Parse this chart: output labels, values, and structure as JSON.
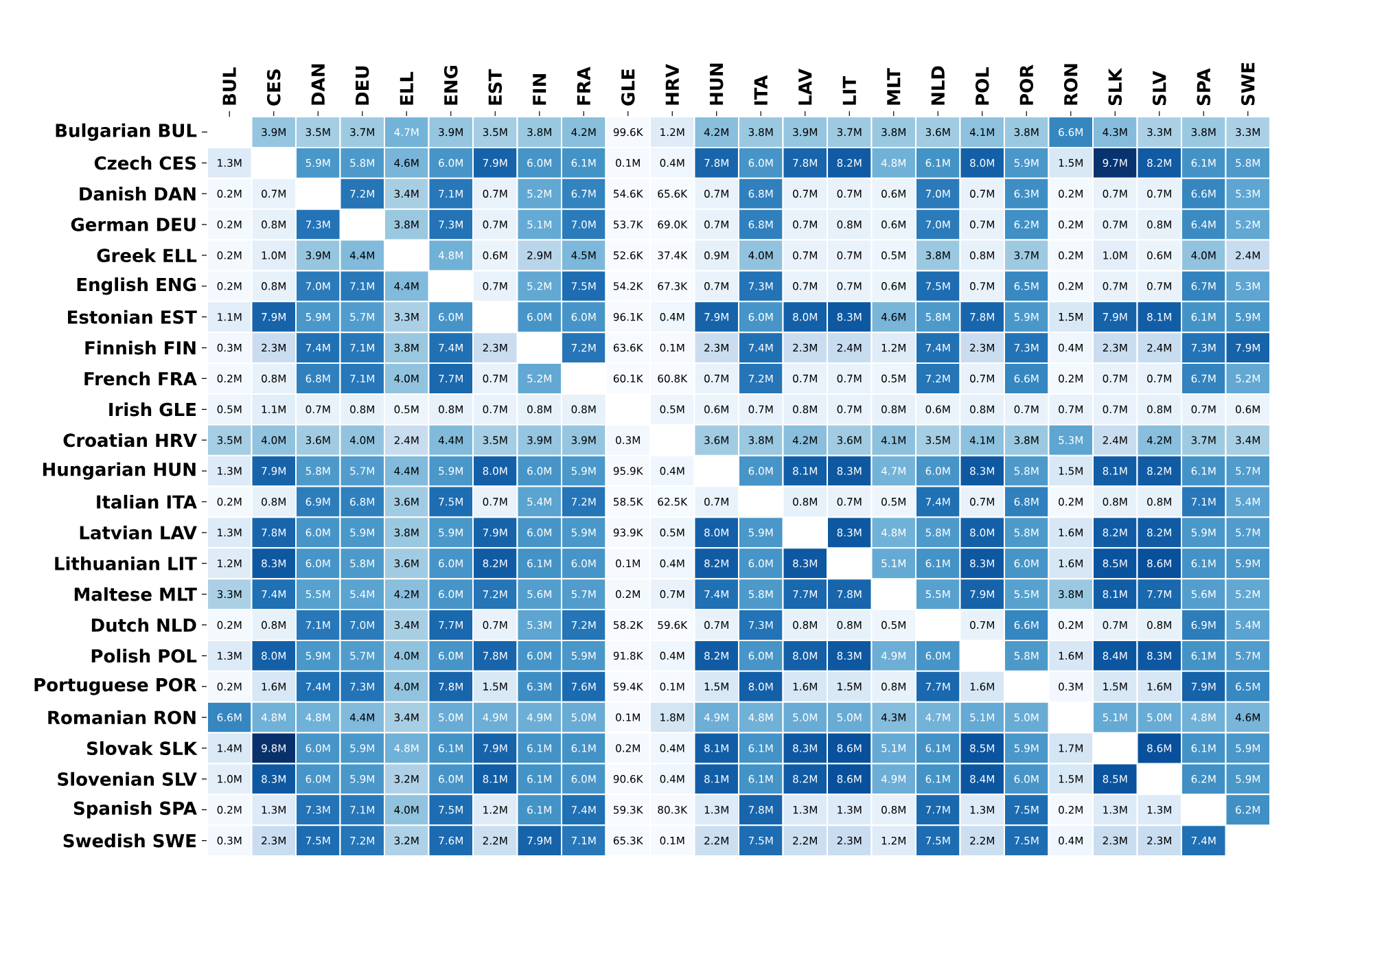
{
  "chart_data": {
    "type": "heatmap",
    "categories": [
      "BUL",
      "CES",
      "DAN",
      "DEU",
      "ELL",
      "ENG",
      "EST",
      "FIN",
      "FRA",
      "GLE",
      "HRV",
      "HUN",
      "ITA",
      "LAV",
      "LIT",
      "MLT",
      "NLD",
      "POL",
      "POR",
      "RON",
      "SLK",
      "SLV",
      "SPA",
      "SWE"
    ],
    "y_categories": [
      "Bulgarian BUL",
      "Czech CES",
      "Danish DAN",
      "German DEU",
      "Greek ELL",
      "English ENG",
      "Estonian EST",
      "Finnish FIN",
      "French FRA",
      "Irish GLE",
      "Croatian HRV",
      "Hungarian HUN",
      "Italian ITA",
      "Latvian LAV",
      "Lithuanian LIT",
      "Maltese MLT",
      "Dutch NLD",
      "Polish POL",
      "Portuguese POR",
      "Romanian RON",
      "Slovak SLK",
      "Slovenian SLV",
      "Spanish SPA",
      "Swedish SWE"
    ],
    "cells": [
      [
        null,
        3900000,
        3500000,
        3700000,
        4700000,
        3900000,
        3500000,
        3800000,
        4200000,
        99600,
        1200000,
        4200000,
        3800000,
        3900000,
        3700000,
        3800000,
        3600000,
        4100000,
        3800000,
        6600000,
        4300000,
        3300000,
        3800000,
        3300000
      ],
      [
        1300000,
        null,
        5900000,
        5800000,
        4600000,
        6000000,
        7900000,
        6000000,
        6100000,
        100000,
        400000,
        7800000,
        6000000,
        7800000,
        8200000,
        4800000,
        6100000,
        8000000,
        5900000,
        1500000,
        9700000,
        8200000,
        6100000,
        5800000
      ],
      [
        200000,
        700000,
        null,
        7200000,
        3400000,
        7100000,
        700000,
        5200000,
        6700000,
        54600,
        65600,
        700000,
        6800000,
        700000,
        700000,
        600000,
        7000000,
        700000,
        6300000,
        200000,
        700000,
        700000,
        6600000,
        5300000
      ],
      [
        200000,
        800000,
        7300000,
        null,
        3800000,
        7300000,
        700000,
        5100000,
        7000000,
        53700,
        69000,
        700000,
        6800000,
        700000,
        800000,
        600000,
        7000000,
        700000,
        6200000,
        200000,
        700000,
        800000,
        6400000,
        5200000
      ],
      [
        200000,
        1000000,
        3900000,
        4400000,
        null,
        4800000,
        600000,
        2900000,
        4500000,
        52600,
        37400,
        900000,
        4000000,
        700000,
        700000,
        500000,
        3800000,
        800000,
        3700000,
        200000,
        1000000,
        600000,
        4000000,
        2400000
      ],
      [
        200000,
        800000,
        7000000,
        7100000,
        4400000,
        null,
        700000,
        5200000,
        7500000,
        54200,
        67300,
        700000,
        7300000,
        700000,
        700000,
        600000,
        7500000,
        700000,
        6500000,
        200000,
        700000,
        700000,
        6700000,
        5300000
      ],
      [
        1100000,
        7900000,
        5900000,
        5700000,
        3300000,
        6000000,
        null,
        6000000,
        6000000,
        96100,
        400000,
        7900000,
        6000000,
        8000000,
        8300000,
        4600000,
        5800000,
        7800000,
        5900000,
        1500000,
        7900000,
        8100000,
        6100000,
        5900000
      ],
      [
        300000,
        2300000,
        7400000,
        7100000,
        3800000,
        7400000,
        2300000,
        null,
        7200000,
        63600,
        100000,
        2300000,
        7400000,
        2300000,
        2400000,
        1200000,
        7400000,
        2300000,
        7300000,
        400000,
        2300000,
        2400000,
        7300000,
        7900000
      ],
      [
        200000,
        800000,
        6800000,
        7100000,
        4000000,
        7700000,
        700000,
        5200000,
        null,
        60100,
        60800,
        700000,
        7200000,
        700000,
        700000,
        500000,
        7200000,
        700000,
        6600000,
        200000,
        700000,
        700000,
        6700000,
        5200000
      ],
      [
        500000,
        1100000,
        700000,
        800000,
        500000,
        800000,
        700000,
        800000,
        800000,
        null,
        500000,
        600000,
        700000,
        800000,
        700000,
        800000,
        600000,
        800000,
        700000,
        700000,
        700000,
        800000,
        700000,
        600000
      ],
      [
        3500000,
        4000000,
        3600000,
        4000000,
        2400000,
        4400000,
        3500000,
        3900000,
        3900000,
        300000,
        null,
        3600000,
        3800000,
        4200000,
        3600000,
        4100000,
        3500000,
        4100000,
        3800000,
        5300000,
        2400000,
        4200000,
        3700000,
        3400000
      ],
      [
        1300000,
        7900000,
        5800000,
        5700000,
        4400000,
        5900000,
        8000000,
        6000000,
        5900000,
        95900,
        400000,
        null,
        6000000,
        8100000,
        8300000,
        4700000,
        6000000,
        8300000,
        5800000,
        1500000,
        8100000,
        8200000,
        6100000,
        5700000
      ],
      [
        200000,
        800000,
        6900000,
        6800000,
        3600000,
        7500000,
        700000,
        5400000,
        7200000,
        58500,
        62500,
        700000,
        null,
        800000,
        700000,
        500000,
        7400000,
        700000,
        6800000,
        200000,
        800000,
        800000,
        7100000,
        5400000
      ],
      [
        1300000,
        7800000,
        6000000,
        5900000,
        3800000,
        5900000,
        7900000,
        6000000,
        5900000,
        93900,
        500000,
        8000000,
        5900000,
        null,
        8300000,
        4800000,
        5800000,
        8000000,
        5800000,
        1600000,
        8200000,
        8200000,
        5900000,
        5700000
      ],
      [
        1200000,
        8300000,
        6000000,
        5800000,
        3600000,
        6000000,
        8200000,
        6100000,
        6000000,
        100000,
        400000,
        8200000,
        6000000,
        8300000,
        null,
        5100000,
        6100000,
        8300000,
        6000000,
        1600000,
        8500000,
        8600000,
        6100000,
        5900000
      ],
      [
        3300000,
        7400000,
        5500000,
        5400000,
        4200000,
        6000000,
        7200000,
        5600000,
        5700000,
        200000,
        700000,
        7400000,
        5800000,
        7700000,
        7800000,
        null,
        5500000,
        7900000,
        5500000,
        3800000,
        8100000,
        7700000,
        5600000,
        5200000
      ],
      [
        200000,
        800000,
        7100000,
        7000000,
        3400000,
        7700000,
        700000,
        5300000,
        7200000,
        58200,
        59600,
        700000,
        7300000,
        800000,
        800000,
        500000,
        null,
        700000,
        6600000,
        200000,
        700000,
        800000,
        6900000,
        5400000
      ],
      [
        1300000,
        8000000,
        5900000,
        5700000,
        4000000,
        6000000,
        7800000,
        6000000,
        5900000,
        91800,
        400000,
        8200000,
        6000000,
        8000000,
        8300000,
        4900000,
        6000000,
        null,
        5800000,
        1600000,
        8400000,
        8300000,
        6100000,
        5700000
      ],
      [
        200000,
        1600000,
        7400000,
        7300000,
        4000000,
        7800000,
        1500000,
        6300000,
        7600000,
        59400,
        100000,
        1500000,
        8000000,
        1600000,
        1500000,
        800000,
        7700000,
        1600000,
        null,
        300000,
        1500000,
        1600000,
        7900000,
        6500000
      ],
      [
        6600000,
        4800000,
        4800000,
        4400000,
        3400000,
        5000000,
        4900000,
        4900000,
        5000000,
        100000,
        1800000,
        4900000,
        4800000,
        5000000,
        5000000,
        4300000,
        4700000,
        5100000,
        5000000,
        null,
        5100000,
        5000000,
        4800000,
        4600000
      ],
      [
        1400000,
        9800000,
        6000000,
        5900000,
        4800000,
        6100000,
        7900000,
        6100000,
        6100000,
        200000,
        400000,
        8100000,
        6100000,
        8300000,
        8600000,
        5100000,
        6100000,
        8500000,
        5900000,
        1700000,
        null,
        8600000,
        6100000,
        5900000
      ],
      [
        1000000,
        8300000,
        6000000,
        5900000,
        3200000,
        6000000,
        8100000,
        6100000,
        6000000,
        90600,
        400000,
        8100000,
        6100000,
        8200000,
        8600000,
        4900000,
        6100000,
        8400000,
        6000000,
        1500000,
        8500000,
        null,
        6200000,
        5900000
      ],
      [
        200000,
        1300000,
        7300000,
        7100000,
        4000000,
        7500000,
        1200000,
        6100000,
        7400000,
        59300,
        80300,
        1300000,
        7800000,
        1300000,
        1300000,
        800000,
        7700000,
        1300000,
        7500000,
        200000,
        1300000,
        1300000,
        null,
        6200000
      ],
      [
        300000,
        2300000,
        7500000,
        7200000,
        3200000,
        7600000,
        2200000,
        7900000,
        7100000,
        65300,
        100000,
        2200000,
        7500000,
        2200000,
        2300000,
        1200000,
        7500000,
        2200000,
        7500000,
        400000,
        2300000,
        2300000,
        7400000,
        null
      ]
    ],
    "cell_labels": [
      [
        null,
        "3.9M",
        "3.5M",
        "3.7M",
        "4.7M",
        "3.9M",
        "3.5M",
        "3.8M",
        "4.2M",
        "99.6K",
        "1.2M",
        "4.2M",
        "3.8M",
        "3.9M",
        "3.7M",
        "3.8M",
        "3.6M",
        "4.1M",
        "3.8M",
        "6.6M",
        "4.3M",
        "3.3M",
        "3.8M",
        "3.3M"
      ],
      [
        "1.3M",
        null,
        "5.9M",
        "5.8M",
        "4.6M",
        "6.0M",
        "7.9M",
        "6.0M",
        "6.1M",
        "0.1M",
        "0.4M",
        "7.8M",
        "6.0M",
        "7.8M",
        "8.2M",
        "4.8M",
        "6.1M",
        "8.0M",
        "5.9M",
        "1.5M",
        "9.7M",
        "8.2M",
        "6.1M",
        "5.8M"
      ],
      [
        "0.2M",
        "0.7M",
        null,
        "7.2M",
        "3.4M",
        "7.1M",
        "0.7M",
        "5.2M",
        "6.7M",
        "54.6K",
        "65.6K",
        "0.7M",
        "6.8M",
        "0.7M",
        "0.7M",
        "0.6M",
        "7.0M",
        "0.7M",
        "6.3M",
        "0.2M",
        "0.7M",
        "0.7M",
        "6.6M",
        "5.3M"
      ],
      [
        "0.2M",
        "0.8M",
        "7.3M",
        null,
        "3.8M",
        "7.3M",
        "0.7M",
        "5.1M",
        "7.0M",
        "53.7K",
        "69.0K",
        "0.7M",
        "6.8M",
        "0.7M",
        "0.8M",
        "0.6M",
        "7.0M",
        "0.7M",
        "6.2M",
        "0.2M",
        "0.7M",
        "0.8M",
        "6.4M",
        "5.2M"
      ],
      [
        "0.2M",
        "1.0M",
        "3.9M",
        "4.4M",
        null,
        "4.8M",
        "0.6M",
        "2.9M",
        "4.5M",
        "52.6K",
        "37.4K",
        "0.9M",
        "4.0M",
        "0.7M",
        "0.7M",
        "0.5M",
        "3.8M",
        "0.8M",
        "3.7M",
        "0.2M",
        "1.0M",
        "0.6M",
        "4.0M",
        "2.4M"
      ],
      [
        "0.2M",
        "0.8M",
        "7.0M",
        "7.1M",
        "4.4M",
        null,
        "0.7M",
        "5.2M",
        "7.5M",
        "54.2K",
        "67.3K",
        "0.7M",
        "7.3M",
        "0.7M",
        "0.7M",
        "0.6M",
        "7.5M",
        "0.7M",
        "6.5M",
        "0.2M",
        "0.7M",
        "0.7M",
        "6.7M",
        "5.3M"
      ],
      [
        "1.1M",
        "7.9M",
        "5.9M",
        "5.7M",
        "3.3M",
        "6.0M",
        null,
        "6.0M",
        "6.0M",
        "96.1K",
        "0.4M",
        "7.9M",
        "6.0M",
        "8.0M",
        "8.3M",
        "4.6M",
        "5.8M",
        "7.8M",
        "5.9M",
        "1.5M",
        "7.9M",
        "8.1M",
        "6.1M",
        "5.9M"
      ],
      [
        "0.3M",
        "2.3M",
        "7.4M",
        "7.1M",
        "3.8M",
        "7.4M",
        "2.3M",
        null,
        "7.2M",
        "63.6K",
        "0.1M",
        "2.3M",
        "7.4M",
        "2.3M",
        "2.4M",
        "1.2M",
        "7.4M",
        "2.3M",
        "7.3M",
        "0.4M",
        "2.3M",
        "2.4M",
        "7.3M",
        "7.9M"
      ],
      [
        "0.2M",
        "0.8M",
        "6.8M",
        "7.1M",
        "4.0M",
        "7.7M",
        "0.7M",
        "5.2M",
        null,
        "60.1K",
        "60.8K",
        "0.7M",
        "7.2M",
        "0.7M",
        "0.7M",
        "0.5M",
        "7.2M",
        "0.7M",
        "6.6M",
        "0.2M",
        "0.7M",
        "0.7M",
        "6.7M",
        "5.2M"
      ],
      [
        "0.5M",
        "1.1M",
        "0.7M",
        "0.8M",
        "0.5M",
        "0.8M",
        "0.7M",
        "0.8M",
        "0.8M",
        null,
        "0.5M",
        "0.6M",
        "0.7M",
        "0.8M",
        "0.7M",
        "0.8M",
        "0.6M",
        "0.8M",
        "0.7M",
        "0.7M",
        "0.7M",
        "0.8M",
        "0.7M",
        "0.6M"
      ],
      [
        "3.5M",
        "4.0M",
        "3.6M",
        "4.0M",
        "2.4M",
        "4.4M",
        "3.5M",
        "3.9M",
        "3.9M",
        "0.3M",
        null,
        "3.6M",
        "3.8M",
        "4.2M",
        "3.6M",
        "4.1M",
        "3.5M",
        "4.1M",
        "3.8M",
        "5.3M",
        "2.4M",
        "4.2M",
        "3.7M",
        "3.4M"
      ],
      [
        "1.3M",
        "7.9M",
        "5.8M",
        "5.7M",
        "4.4M",
        "5.9M",
        "8.0M",
        "6.0M",
        "5.9M",
        "95.9K",
        "0.4M",
        null,
        "6.0M",
        "8.1M",
        "8.3M",
        "4.7M",
        "6.0M",
        "8.3M",
        "5.8M",
        "1.5M",
        "8.1M",
        "8.2M",
        "6.1M",
        "5.7M"
      ],
      [
        "0.2M",
        "0.8M",
        "6.9M",
        "6.8M",
        "3.6M",
        "7.5M",
        "0.7M",
        "5.4M",
        "7.2M",
        "58.5K",
        "62.5K",
        "0.7M",
        null,
        "0.8M",
        "0.7M",
        "0.5M",
        "7.4M",
        "0.7M",
        "6.8M",
        "0.2M",
        "0.8M",
        "0.8M",
        "7.1M",
        "5.4M"
      ],
      [
        "1.3M",
        "7.8M",
        "6.0M",
        "5.9M",
        "3.8M",
        "5.9M",
        "7.9M",
        "6.0M",
        "5.9M",
        "93.9K",
        "0.5M",
        "8.0M",
        "5.9M",
        null,
        "8.3M",
        "4.8M",
        "5.8M",
        "8.0M",
        "5.8M",
        "1.6M",
        "8.2M",
        "8.2M",
        "5.9M",
        "5.7M"
      ],
      [
        "1.2M",
        "8.3M",
        "6.0M",
        "5.8M",
        "3.6M",
        "6.0M",
        "8.2M",
        "6.1M",
        "6.0M",
        "0.1M",
        "0.4M",
        "8.2M",
        "6.0M",
        "8.3M",
        null,
        "5.1M",
        "6.1M",
        "8.3M",
        "6.0M",
        "1.6M",
        "8.5M",
        "8.6M",
        "6.1M",
        "5.9M"
      ],
      [
        "3.3M",
        "7.4M",
        "5.5M",
        "5.4M",
        "4.2M",
        "6.0M",
        "7.2M",
        "5.6M",
        "5.7M",
        "0.2M",
        "0.7M",
        "7.4M",
        "5.8M",
        "7.7M",
        "7.8M",
        null,
        "5.5M",
        "7.9M",
        "5.5M",
        "3.8M",
        "8.1M",
        "7.7M",
        "5.6M",
        "5.2M"
      ],
      [
        "0.2M",
        "0.8M",
        "7.1M",
        "7.0M",
        "3.4M",
        "7.7M",
        "0.7M",
        "5.3M",
        "7.2M",
        "58.2K",
        "59.6K",
        "0.7M",
        "7.3M",
        "0.8M",
        "0.8M",
        "0.5M",
        null,
        "0.7M",
        "6.6M",
        "0.2M",
        "0.7M",
        "0.8M",
        "6.9M",
        "5.4M"
      ],
      [
        "1.3M",
        "8.0M",
        "5.9M",
        "5.7M",
        "4.0M",
        "6.0M",
        "7.8M",
        "6.0M",
        "5.9M",
        "91.8K",
        "0.4M",
        "8.2M",
        "6.0M",
        "8.0M",
        "8.3M",
        "4.9M",
        "6.0M",
        null,
        "5.8M",
        "1.6M",
        "8.4M",
        "8.3M",
        "6.1M",
        "5.7M"
      ],
      [
        "0.2M",
        "1.6M",
        "7.4M",
        "7.3M",
        "4.0M",
        "7.8M",
        "1.5M",
        "6.3M",
        "7.6M",
        "59.4K",
        "0.1M",
        "1.5M",
        "8.0M",
        "1.6M",
        "1.5M",
        "0.8M",
        "7.7M",
        "1.6M",
        null,
        "0.3M",
        "1.5M",
        "1.6M",
        "7.9M",
        "6.5M"
      ],
      [
        "6.6M",
        "4.8M",
        "4.8M",
        "4.4M",
        "3.4M",
        "5.0M",
        "4.9M",
        "4.9M",
        "5.0M",
        "0.1M",
        "1.8M",
        "4.9M",
        "4.8M",
        "5.0M",
        "5.0M",
        "4.3M",
        "4.7M",
        "5.1M",
        "5.0M",
        null,
        "5.1M",
        "5.0M",
        "4.8M",
        "4.6M"
      ],
      [
        "1.4M",
        "9.8M",
        "6.0M",
        "5.9M",
        "4.8M",
        "6.1M",
        "7.9M",
        "6.1M",
        "6.1M",
        "0.2M",
        "0.4M",
        "8.1M",
        "6.1M",
        "8.3M",
        "8.6M",
        "5.1M",
        "6.1M",
        "8.5M",
        "5.9M",
        "1.7M",
        null,
        "8.6M",
        "6.1M",
        "5.9M"
      ],
      [
        "1.0M",
        "8.3M",
        "6.0M",
        "5.9M",
        "3.2M",
        "6.0M",
        "8.1M",
        "6.1M",
        "6.0M",
        "90.6K",
        "0.4M",
        "8.1M",
        "6.1M",
        "8.2M",
        "8.6M",
        "4.9M",
        "6.1M",
        "8.4M",
        "6.0M",
        "1.5M",
        "8.5M",
        null,
        "6.2M",
        "5.9M"
      ],
      [
        "0.2M",
        "1.3M",
        "7.3M",
        "7.1M",
        "4.0M",
        "7.5M",
        "1.2M",
        "6.1M",
        "7.4M",
        "59.3K",
        "80.3K",
        "1.3M",
        "7.8M",
        "1.3M",
        "1.3M",
        "0.8M",
        "7.7M",
        "1.3M",
        "7.5M",
        "0.2M",
        "1.3M",
        "1.3M",
        null,
        "6.2M"
      ],
      [
        "0.3M",
        "2.3M",
        "7.5M",
        "7.2M",
        "3.2M",
        "7.6M",
        "2.2M",
        "7.9M",
        "7.1M",
        "65.3K",
        "0.1M",
        "2.2M",
        "7.5M",
        "2.2M",
        "2.3M",
        "1.2M",
        "7.5M",
        "2.2M",
        "7.5M",
        "0.4M",
        "2.3M",
        "2.3M",
        "7.4M",
        null
      ]
    ]
  }
}
